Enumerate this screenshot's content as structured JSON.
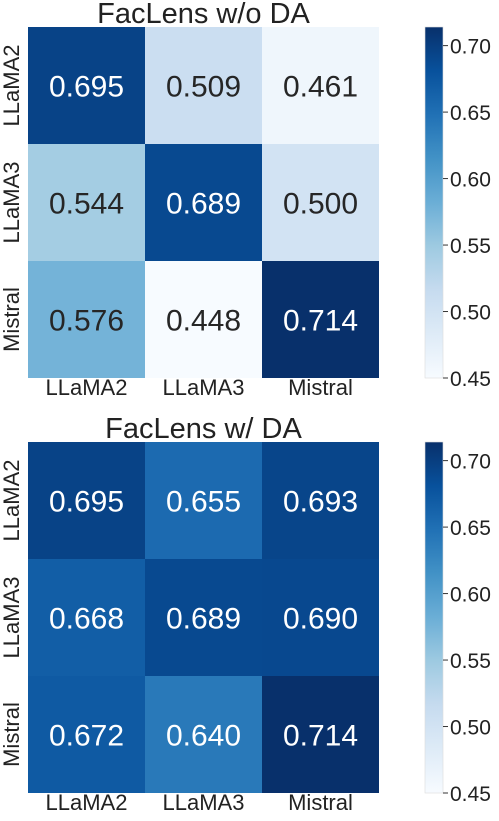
{
  "chart_data": [
    {
      "type": "heatmap",
      "title": "FacLens w/o DA",
      "row_labels": [
        "LLaMA2",
        "LLaMA3",
        "Mistral"
      ],
      "col_labels": [
        "LLaMA2",
        "LLaMA3",
        "Mistral"
      ],
      "values": [
        [
          0.695,
          0.509,
          0.461
        ],
        [
          0.544,
          0.689,
          0.5
        ],
        [
          0.576,
          0.448,
          0.714
        ]
      ],
      "value_labels": [
        [
          "0.695",
          "0.509",
          "0.461"
        ],
        [
          "0.544",
          "0.689",
          "0.500"
        ],
        [
          "0.576",
          "0.448",
          "0.714"
        ]
      ],
      "colorbar": {
        "min": 0.45,
        "max": 0.714,
        "ticks": [
          "0.45",
          "0.50",
          "0.55",
          "0.60",
          "0.65",
          "0.70"
        ]
      },
      "colormap": "Blues"
    },
    {
      "type": "heatmap",
      "title": "FacLens w/ DA",
      "row_labels": [
        "LLaMA2",
        "LLaMA3",
        "Mistral"
      ],
      "col_labels": [
        "LLaMA2",
        "LLaMA3",
        "Mistral"
      ],
      "values": [
        [
          0.695,
          0.655,
          0.693
        ],
        [
          0.668,
          0.689,
          0.69
        ],
        [
          0.672,
          0.64,
          0.714
        ]
      ],
      "value_labels": [
        [
          "0.695",
          "0.655",
          "0.693"
        ],
        [
          "0.668",
          "0.689",
          "0.690"
        ],
        [
          "0.672",
          "0.640",
          "0.714"
        ]
      ],
      "colorbar": {
        "min": 0.45,
        "max": 0.714,
        "ticks": [
          "0.45",
          "0.50",
          "0.55",
          "0.60",
          "0.65",
          "0.70"
        ]
      },
      "colormap": "Blues"
    }
  ]
}
